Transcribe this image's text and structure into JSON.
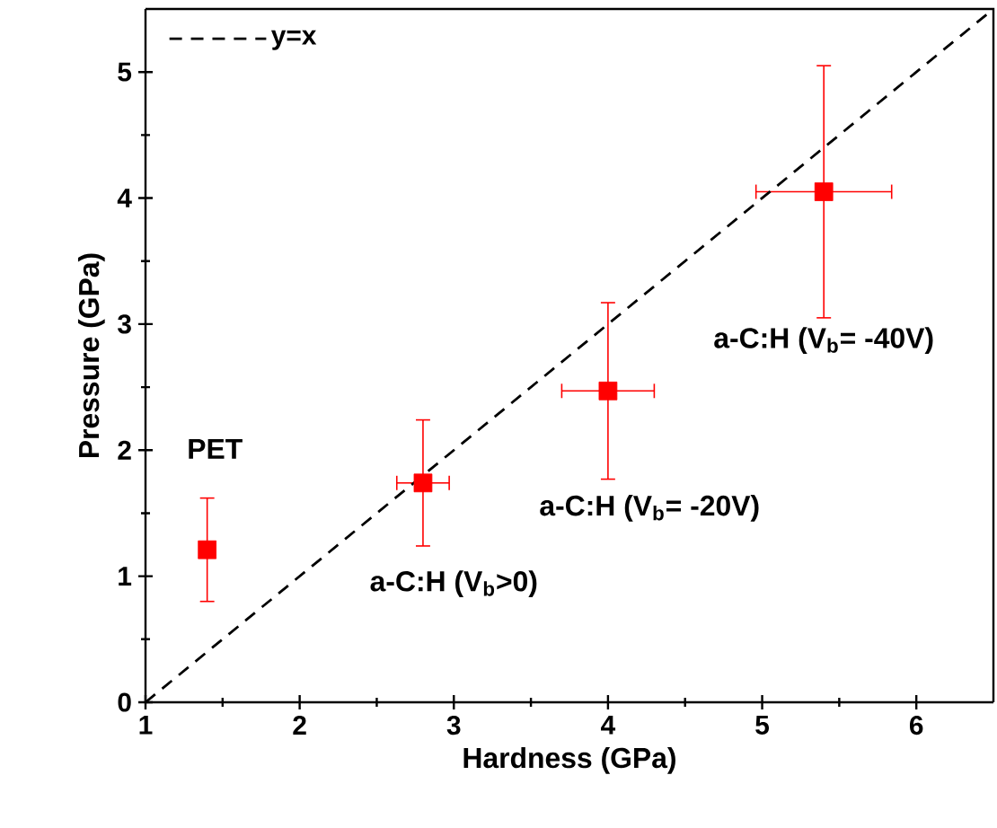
{
  "chart_data": {
    "type": "scatter",
    "xlabel": "Hardness (GPa)",
    "ylabel": "Pressure (GPa)",
    "xlim": [
      1,
      6.5
    ],
    "ylim": [
      0,
      5.5
    ],
    "xticks": [
      1,
      2,
      3,
      4,
      5,
      6
    ],
    "yticks": [
      0,
      1,
      2,
      3,
      4,
      5
    ],
    "grid": false,
    "legend": "top left",
    "series": [
      {
        "color": "#ff0000",
        "marker": "square",
        "x": [
          1.4,
          2.8,
          4.0,
          5.4
        ],
        "values": [
          1.21,
          1.74,
          2.47,
          4.05
        ],
        "errors": [
          0.41,
          0.5,
          0.7,
          1.0
        ],
        "xerrors": [
          null,
          0.17,
          0.3,
          0.44
        ]
      },
      {
        "type": "line",
        "name": "y=x",
        "color": "#000000",
        "line_style": "dashed",
        "x": [
          1,
          6.5
        ],
        "values": [
          0,
          5.5
        ]
      }
    ],
    "annotations": [
      "PET",
      "a-C:H (V$_{b}$>0)",
      "a-C:H (V$_{b}$= -20V)",
      "a-C:H (V$_{b}$= -40V)"
    ]
  }
}
